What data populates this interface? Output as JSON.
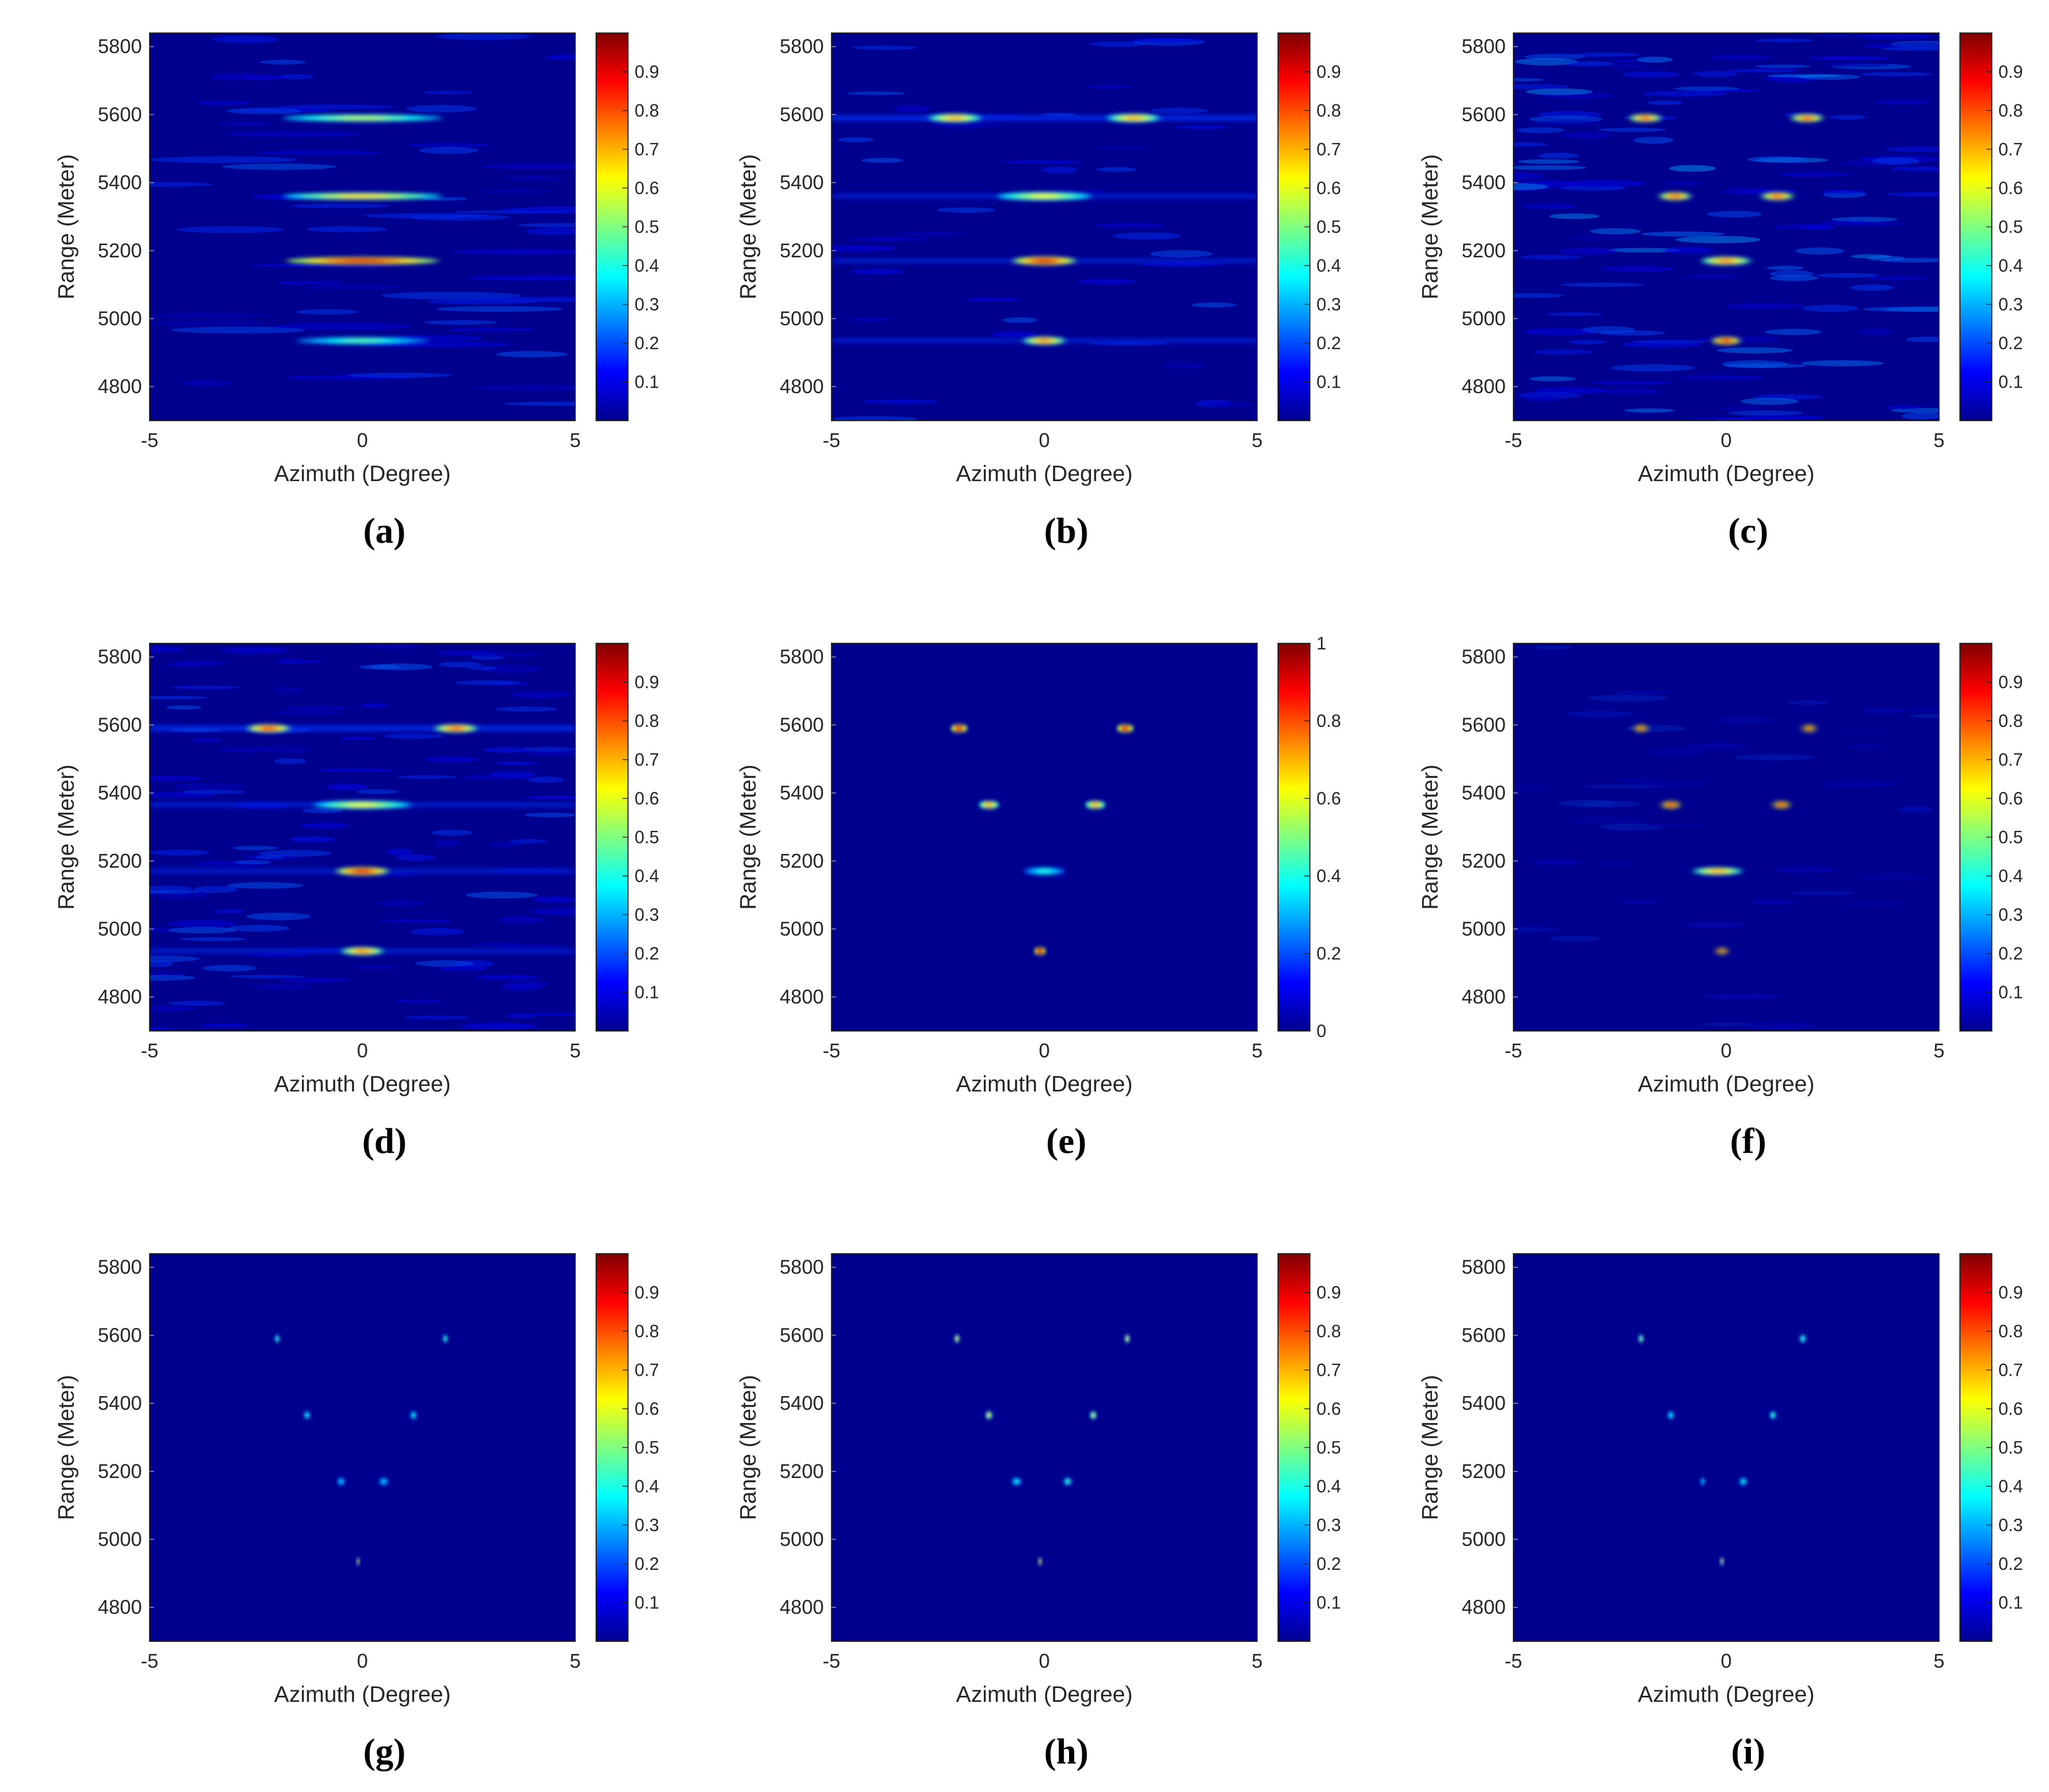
{
  "figure": {
    "colors": {
      "background": "#00008f",
      "tick_color": "#262626"
    },
    "colormap": [
      "#00008f",
      "#0000ff",
      "#0080ff",
      "#00ffff",
      "#80ff80",
      "#ffff00",
      "#ff8000",
      "#ff0000",
      "#800000"
    ],
    "x_ticks": [
      "-5",
      "0",
      "5"
    ],
    "y_ticks": [
      "5800",
      "5600",
      "5400",
      "5200",
      "5000",
      "4800"
    ],
    "cb_ticks_default": [
      "0.9",
      "0.8",
      "0.7",
      "0.6",
      "0.5",
      "0.4",
      "0.3",
      "0.2",
      "0.1"
    ],
    "cb_ticks_e": [
      "1",
      "0.8",
      "0.6",
      "0.4",
      "0.2",
      "0"
    ]
  },
  "chart_data": [
    {
      "type": "heatmap",
      "caption": "(a)",
      "label": "a",
      "style": "stripe",
      "xlabel": "Azimuth (Degree)",
      "ylabel": "Range (Meter)",
      "xlim": [
        -5,
        5
      ],
      "ylim": [
        4700,
        5840
      ],
      "clim": [
        0,
        1
      ],
      "blobs": [
        {
          "x": 0,
          "y": 5590,
          "w": 4.6,
          "h": 10,
          "v": 0.55
        },
        {
          "x": 0,
          "y": 5360,
          "w": 4.6,
          "h": 10,
          "v": 0.65
        },
        {
          "x": 0,
          "y": 5170,
          "w": 4.4,
          "h": 12,
          "v": 0.9
        },
        {
          "x": 0,
          "y": 4935,
          "w": 3.8,
          "h": 10,
          "v": 0.45
        }
      ]
    },
    {
      "type": "heatmap",
      "caption": "(b)",
      "label": "b",
      "style": "smooth",
      "xlabel": "Azimuth (Degree)",
      "ylabel": "Range (Meter)",
      "xlim": [
        -5,
        5
      ],
      "ylim": [
        4700,
        5840
      ],
      "clim": [
        0,
        1
      ],
      "blobs": [
        {
          "x": -2.1,
          "y": 5590,
          "w": 1.5,
          "h": 14,
          "v": 0.7
        },
        {
          "x": 2.1,
          "y": 5590,
          "w": 1.5,
          "h": 14,
          "v": 0.7
        },
        {
          "x": 0,
          "y": 5360,
          "w": 2.7,
          "h": 14,
          "v": 0.6
        },
        {
          "x": 0,
          "y": 5170,
          "w": 1.8,
          "h": 15,
          "v": 0.9
        },
        {
          "x": 0,
          "y": 4935,
          "w": 1.2,
          "h": 13,
          "v": 0.75
        }
      ]
    },
    {
      "type": "heatmap",
      "caption": "(c)",
      "label": "c",
      "style": "noisy",
      "xlabel": "Azimuth (Degree)",
      "ylabel": "Range (Meter)",
      "xlim": [
        -5,
        5
      ],
      "ylim": [
        4700,
        5840
      ],
      "clim": [
        0,
        1
      ],
      "blobs": [
        {
          "x": -1.9,
          "y": 5590,
          "w": 0.9,
          "h": 13,
          "v": 0.8
        },
        {
          "x": 1.9,
          "y": 5590,
          "w": 0.9,
          "h": 13,
          "v": 0.8
        },
        {
          "x": -1.2,
          "y": 5360,
          "w": 0.9,
          "h": 13,
          "v": 0.8
        },
        {
          "x": 1.2,
          "y": 5360,
          "w": 0.9,
          "h": 13,
          "v": 0.8
        },
        {
          "x": 0,
          "y": 5170,
          "w": 1.4,
          "h": 14,
          "v": 0.75
        },
        {
          "x": 0,
          "y": 4935,
          "w": 0.8,
          "h": 13,
          "v": 0.9
        }
      ]
    },
    {
      "type": "heatmap",
      "caption": "(d)",
      "label": "d",
      "style": "banded",
      "xlabel": "Azimuth (Degree)",
      "ylabel": "Range (Meter)",
      "xlim": [
        -5,
        5
      ],
      "ylim": [
        4700,
        5840
      ],
      "clim": [
        0,
        1
      ],
      "blobs": [
        {
          "x": -2.2,
          "y": 5590,
          "w": 1.2,
          "h": 13,
          "v": 0.85
        },
        {
          "x": 2.2,
          "y": 5590,
          "w": 1.2,
          "h": 13,
          "v": 0.8
        },
        {
          "x": 0,
          "y": 5365,
          "w": 2.8,
          "h": 13,
          "v": 0.6
        },
        {
          "x": 0,
          "y": 5170,
          "w": 1.5,
          "h": 14,
          "v": 0.9
        },
        {
          "x": 0,
          "y": 4935,
          "w": 1.2,
          "h": 13,
          "v": 0.75
        }
      ]
    },
    {
      "type": "heatmap",
      "caption": "(e)",
      "label": "e",
      "style": "clean",
      "xlabel": "Azimuth (Degree)",
      "ylabel": "Range (Meter)",
      "xlim": [
        -5,
        5
      ],
      "ylim": [
        4700,
        5840
      ],
      "clim": [
        0,
        1
      ],
      "blobs": [
        {
          "x": -2,
          "y": 5590,
          "w": 0.5,
          "h": 12,
          "v": 0.9
        },
        {
          "x": 1.9,
          "y": 5590,
          "w": 0.5,
          "h": 12,
          "v": 0.9
        },
        {
          "x": -1.3,
          "y": 5365,
          "w": 0.6,
          "h": 12,
          "v": 0.7
        },
        {
          "x": 1.2,
          "y": 5365,
          "w": 0.6,
          "h": 12,
          "v": 0.7
        },
        {
          "x": 0,
          "y": 5170,
          "w": 1.2,
          "h": 12,
          "v": 0.4
        },
        {
          "x": -0.1,
          "y": 4935,
          "w": 0.35,
          "h": 11,
          "v": 0.95
        }
      ]
    },
    {
      "type": "heatmap",
      "caption": "(f)",
      "label": "f",
      "style": "faint",
      "xlabel": "Azimuth (Degree)",
      "ylabel": "Range (Meter)",
      "xlim": [
        -5,
        5
      ],
      "ylim": [
        4700,
        5840
      ],
      "clim": [
        0,
        1
      ],
      "blobs": [
        {
          "x": -2,
          "y": 5590,
          "w": 0.35,
          "h": 12,
          "v": 0.95
        },
        {
          "x": 1.95,
          "y": 5590,
          "w": 0.35,
          "h": 12,
          "v": 0.95
        },
        {
          "x": -1.3,
          "y": 5365,
          "w": 0.5,
          "h": 12,
          "v": 0.95
        },
        {
          "x": 1.3,
          "y": 5365,
          "w": 0.45,
          "h": 12,
          "v": 0.95
        },
        {
          "x": -0.2,
          "y": 5170,
          "w": 1.4,
          "h": 12,
          "v": 0.7
        },
        {
          "x": -0.1,
          "y": 4935,
          "w": 0.3,
          "h": 10,
          "v": 0.95
        }
      ]
    },
    {
      "type": "heatmap",
      "caption": "(g)",
      "label": "g",
      "style": "clean",
      "xlabel": "Azimuth (Degree)",
      "ylabel": "Range (Meter)",
      "xlim": [
        -5,
        5
      ],
      "ylim": [
        4700,
        5840
      ],
      "clim": [
        0,
        1
      ],
      "blobs": [
        {
          "x": -2,
          "y": 5590,
          "w": 0.15,
          "h": 9,
          "v": 0.45
        },
        {
          "x": 1.95,
          "y": 5590,
          "w": 0.15,
          "h": 9,
          "v": 0.45
        },
        {
          "x": -1.3,
          "y": 5365,
          "w": 0.2,
          "h": 9,
          "v": 0.4
        },
        {
          "x": 1.2,
          "y": 5365,
          "w": 0.2,
          "h": 9,
          "v": 0.4
        },
        {
          "x": -0.5,
          "y": 5170,
          "w": 0.25,
          "h": 8,
          "v": 0.35
        },
        {
          "x": 0.5,
          "y": 5170,
          "w": 0.3,
          "h": 8,
          "v": 0.35
        },
        {
          "x": -0.1,
          "y": 4935,
          "w": 0.08,
          "h": 9,
          "v": 0.6
        }
      ]
    },
    {
      "type": "heatmap",
      "caption": "(h)",
      "label": "h",
      "style": "clean",
      "xlabel": "Azimuth (Degree)",
      "ylabel": "Range (Meter)",
      "xlim": [
        -5,
        5
      ],
      "ylim": [
        4700,
        5840
      ],
      "clim": [
        0,
        1
      ],
      "blobs": [
        {
          "x": -2.05,
          "y": 5590,
          "w": 0.15,
          "h": 9,
          "v": 0.65
        },
        {
          "x": 1.95,
          "y": 5590,
          "w": 0.15,
          "h": 9,
          "v": 0.65
        },
        {
          "x": -1.3,
          "y": 5365,
          "w": 0.2,
          "h": 9,
          "v": 0.65
        },
        {
          "x": 1.15,
          "y": 5365,
          "w": 0.2,
          "h": 9,
          "v": 0.6
        },
        {
          "x": -0.65,
          "y": 5170,
          "w": 0.3,
          "h": 8,
          "v": 0.4
        },
        {
          "x": 0.55,
          "y": 5170,
          "w": 0.25,
          "h": 8,
          "v": 0.45
        },
        {
          "x": -0.1,
          "y": 4935,
          "w": 0.1,
          "h": 9,
          "v": 0.7
        }
      ]
    },
    {
      "type": "heatmap",
      "caption": "(i)",
      "label": "i",
      "style": "clean",
      "xlabel": "Azimuth (Degree)",
      "ylabel": "Range (Meter)",
      "xlim": [
        -5,
        5
      ],
      "ylim": [
        4700,
        5840
      ],
      "clim": [
        0,
        1
      ],
      "blobs": [
        {
          "x": -2,
          "y": 5590,
          "w": 0.15,
          "h": 9,
          "v": 0.55
        },
        {
          "x": 1.8,
          "y": 5590,
          "w": 0.2,
          "h": 9,
          "v": 0.45
        },
        {
          "x": -1.3,
          "y": 5365,
          "w": 0.2,
          "h": 9,
          "v": 0.4
        },
        {
          "x": 1.1,
          "y": 5365,
          "w": 0.2,
          "h": 9,
          "v": 0.45
        },
        {
          "x": -0.55,
          "y": 5170,
          "w": 0.15,
          "h": 8,
          "v": 0.35
        },
        {
          "x": 0.4,
          "y": 5170,
          "w": 0.25,
          "h": 8,
          "v": 0.4
        },
        {
          "x": -0.1,
          "y": 4935,
          "w": 0.1,
          "h": 9,
          "v": 0.6
        }
      ]
    }
  ]
}
